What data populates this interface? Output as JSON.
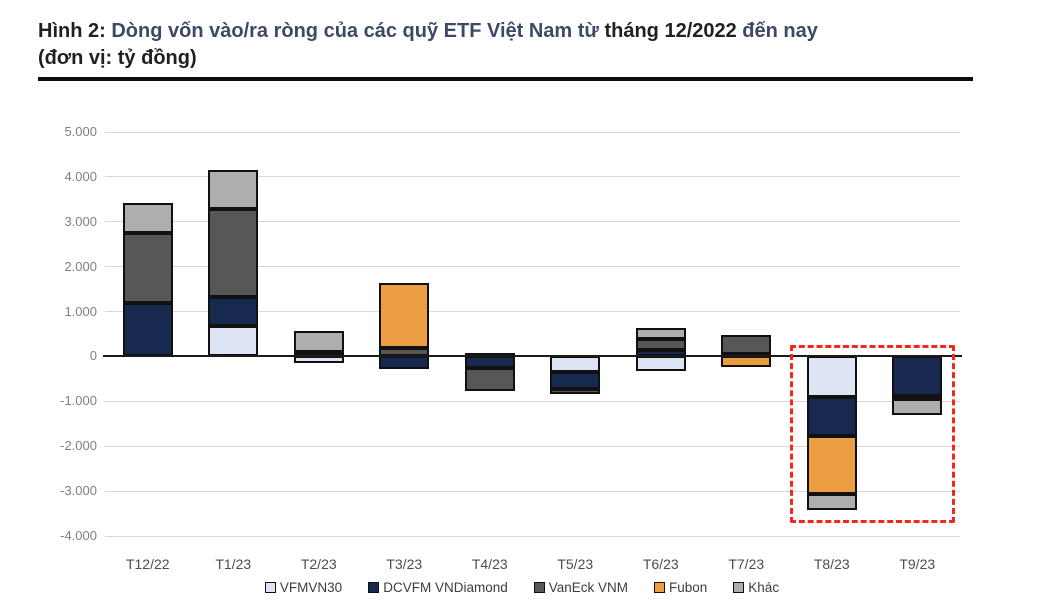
{
  "header": {
    "title_segments": [
      {
        "text": "Hình 2: ",
        "color": "#231f20"
      },
      {
        "text": "Dòng vốn vào/ra ròng của các quỹ ETF Việt Nam từ ",
        "color": "#3c4a66"
      },
      {
        "text": "tháng 12/2022 ",
        "color": "#231f20"
      },
      {
        "text": "đến nay",
        "color": "#3c4a66"
      },
      {
        "text": "\n(đơn vị: tỷ đồng)",
        "color": "#231f20"
      }
    ],
    "title_full": "Hình 2: Dòng vốn vào/ra ròng của các quỹ ETF Việt Nam từ tháng 12/2022 đến nay (đơn vị: tỷ đồng)"
  },
  "chart_data": {
    "type": "bar",
    "stacked": true,
    "unit": "tỷ đồng",
    "categories": [
      "T12/22",
      "T1/23",
      "T2/23",
      "T3/23",
      "T4/23",
      "T5/23",
      "T6/23",
      "T7/23",
      "T8/23",
      "T9/23"
    ],
    "series": [
      {
        "name": "VFMVN30",
        "color": "#dde4f3",
        "texture": false,
        "values": [
          0,
          670,
          -150,
          0,
          0,
          -350,
          -320,
          60,
          -900,
          0
        ]
      },
      {
        "name": "DCVFM VNDiamond",
        "color": "#17294e",
        "texture": false,
        "values": [
          1190,
          660,
          0,
          -270,
          -250,
          -370,
          140,
          0,
          -880,
          -880
        ]
      },
      {
        "name": "VanEck VNM",
        "color": "#575757",
        "texture": false,
        "values": [
          1550,
          1950,
          100,
          190,
          -530,
          -110,
          250,
          420,
          0,
          -60
        ]
      },
      {
        "name": "Fubon",
        "color": "#ec9c41",
        "texture": false,
        "values": [
          0,
          0,
          0,
          1450,
          0,
          0,
          0,
          -230,
          -1290,
          0
        ]
      },
      {
        "name": "Khác",
        "color": "#aeaeae",
        "texture": true,
        "values": [
          680,
          870,
          470,
          0,
          80,
          0,
          240,
          0,
          -360,
          -360
        ]
      }
    ],
    "ylim": [
      -4000,
      5000
    ],
    "ytick_step": 1000,
    "yticks": [
      {
        "v": 5000,
        "label": "5.000"
      },
      {
        "v": 4000,
        "label": "4.000"
      },
      {
        "v": 3000,
        "label": "3.000"
      },
      {
        "v": 2000,
        "label": "2.000"
      },
      {
        "v": 1000,
        "label": "1.000"
      },
      {
        "v": 0,
        "label": "0"
      },
      {
        "v": -1000,
        "label": "-1.000"
      },
      {
        "v": -2000,
        "label": "-2.000"
      },
      {
        "v": -3000,
        "label": "-3.000"
      },
      {
        "v": -4000,
        "label": "-4.000"
      }
    ],
    "grid": true,
    "legend_position": "bottom",
    "annotation": {
      "name": "highlight-recent-outflows",
      "style": "dashed-rect",
      "color": "#fa2519",
      "cat_start": 8,
      "cat_end": 9,
      "v_top": 260,
      "v_bottom": -3700
    }
  },
  "colors": {
    "background": "#ffffff",
    "gridline": "#d9d9d9",
    "axis": "#1a1a1a",
    "y_label": "#7f7f7f",
    "x_label": "#4d4d4d",
    "legend_text": "#3d3d3d",
    "title_rule": "#0d0d0d"
  }
}
